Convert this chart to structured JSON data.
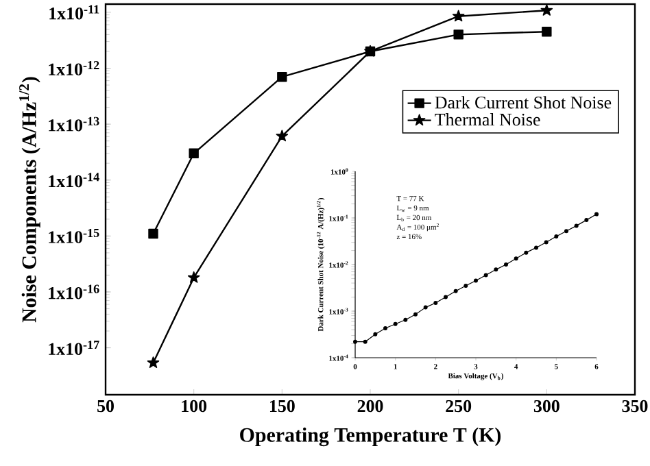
{
  "chart_data": [
    {
      "type": "line",
      "xlabel": "Operating Temperature T (K)",
      "ylabel": "Noise Components (A/Hz$^{1/2}$)",
      "x": [
        77,
        100,
        150,
        200,
        250,
        300
      ],
      "log": "y",
      "xlim": [
        50,
        350
      ],
      "xticks": [
        50,
        100,
        150,
        200,
        250,
        300,
        350
      ],
      "ylim": [
        1.45e-18,
        1.4e-11
      ],
      "yticks": [
        {
          "value": 1e-17,
          "label": "1x10$^{-17}$"
        },
        {
          "value": 1e-16,
          "label": "1x10$^{-16}$"
        },
        {
          "value": 1e-15,
          "label": "1x10$^{-15}$"
        },
        {
          "value": 1e-14,
          "label": "1x10$^{-14}$"
        },
        {
          "value": 1e-13,
          "label": "1x10$^{-13}$"
        },
        {
          "value": 1e-12,
          "label": "1x10$^{-12}$"
        },
        {
          "value": 1e-11,
          "label": "1x10$^{-11}$"
        }
      ],
      "legend": "top right",
      "series": [
        {
          "name": "Dark Current Shot Noise",
          "color": "#000000",
          "marker": "square",
          "values": [
            1.1e-15,
            3e-14,
            7e-13,
            2e-12,
            4e-12,
            4.5e-12
          ]
        },
        {
          "name": "Thermal Noise",
          "color": "#000000",
          "marker": "star",
          "values": [
            5.4e-18,
            1.8e-16,
            6.1e-14,
            2e-12,
            8.5e-12,
            1.08e-11
          ]
        }
      ]
    },
    {
      "type": "line",
      "xlabel": "Bias Voltage (V$_{b}$)",
      "ylabel": "Dark Current Shot Noise (10$^{-12}$ A/(Hz)$^{1/2}$)",
      "log": "y",
      "x": [
        0,
        0.25,
        0.5,
        0.75,
        1,
        1.25,
        1.5,
        1.75,
        2,
        2.25,
        2.5,
        2.75,
        3,
        3.25,
        3.5,
        3.75,
        4,
        4.25,
        4.5,
        4.75,
        5,
        5.25,
        5.5,
        5.75,
        6
      ],
      "xlim": [
        0,
        6
      ],
      "xticks": [
        0,
        1,
        2,
        3,
        4,
        5,
        6
      ],
      "ylim": [
        0.0001,
        1
      ],
      "yticks": [
        {
          "value": 0.0001,
          "label": "1x10$^{-4}$"
        },
        {
          "value": 0.001,
          "label": "1x10$^{-3}$"
        },
        {
          "value": 0.01,
          "label": "1x10$^{-2}$"
        },
        {
          "value": 0.1,
          "label": "1x10$^{-1}$"
        },
        {
          "value": 1,
          "label": "1x10$^{0}$"
        }
      ],
      "marker": "circle",
      "annotations": [
        "T = 77 K",
        "L$_{w}$ = 9 nm",
        "L$_{b}$ = 20 nm",
        "A$_{d}$ = 100 μm$^{2}$",
        "z = 16%"
      ],
      "series": [
        {
          "color": "#000000",
          "values": [
            0.00022,
            0.00022,
            0.00032,
            0.00043,
            0.00053,
            0.00065,
            0.00085,
            0.0012,
            0.0015,
            0.002,
            0.0027,
            0.0035,
            0.0045,
            0.0059,
            0.0078,
            0.01,
            0.0135,
            0.018,
            0.023,
            0.03,
            0.04,
            0.052,
            0.068,
            0.09,
            0.12
          ]
        }
      ]
    }
  ]
}
